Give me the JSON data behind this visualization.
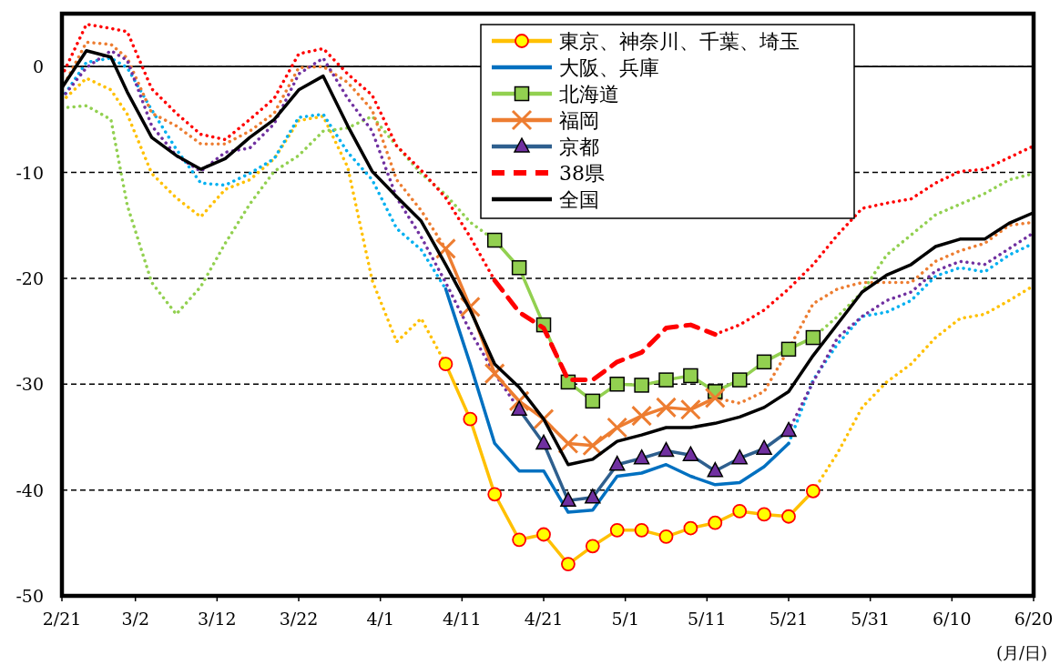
{
  "chart_data": {
    "type": "line",
    "xlabel": "(月/日)",
    "x": [
      "--02-21",
      "--02-24",
      "--02-27",
      "--03-01",
      "--03-04",
      "--03-07",
      "--03-10",
      "--03-13",
      "--03-16",
      "--03-19",
      "--03-22",
      "--03-25",
      "--03-28",
      "--03-31",
      "--04-03",
      "--04-06",
      "--04-09",
      "--04-12",
      "--04-15",
      "--04-18",
      "--04-21",
      "--04-24",
      "--04-27",
      "--04-30",
      "--05-03",
      "--05-06",
      "--05-09",
      "--05-12",
      "--05-15",
      "--05-18",
      "--05-21",
      "--05-24",
      "--05-27",
      "--05-30",
      "--06-02",
      "--06-05",
      "--06-08",
      "--06-11",
      "--06-14",
      "--06-17",
      "--06-20"
    ],
    "xlim": [
      "--02-21",
      "--06-20"
    ],
    "xticks": [
      {
        "value": "--02-21",
        "label": "2/21"
      },
      {
        "value": "--03-02",
        "label": "3/2"
      },
      {
        "value": "--03-12",
        "label": "3/12"
      },
      {
        "value": "--03-22",
        "label": "3/22"
      },
      {
        "value": "--04-01",
        "label": "4/1"
      },
      {
        "value": "--04-11",
        "label": "4/11"
      },
      {
        "value": "--04-21",
        "label": "4/21"
      },
      {
        "value": "--05-01",
        "label": "5/1"
      },
      {
        "value": "--05-11",
        "label": "5/11"
      },
      {
        "value": "--05-21",
        "label": "5/21"
      },
      {
        "value": "--05-31",
        "label": "5/31"
      },
      {
        "value": "--06-10",
        "label": "6/10"
      },
      {
        "value": "--06-20",
        "label": "6/20"
      }
    ],
    "ylim": [
      -50,
      5
    ],
    "yticks": [
      -50,
      -40,
      -30,
      -20,
      -10,
      0
    ],
    "grid": "y",
    "legend": "top right",
    "ref_lines": [
      {
        "axis": "y",
        "value": 0
      }
    ],
    "series": [
      {
        "color": "#ffc000",
        "line_style": "dotted",
        "marker": "none",
        "values": [
          -3.3,
          -1.1,
          -2.2,
          -4.5,
          -10.1,
          -12.4,
          -14.2,
          -11.6,
          -10.7,
          -8.7,
          -5.1,
          -4.7,
          -9.5,
          -20.2,
          -26,
          -23.8,
          -28.1,
          null,
          null,
          null,
          null,
          null,
          null,
          null,
          null,
          null,
          null,
          null,
          null,
          null,
          null,
          -40.1,
          -36.5,
          -32.2,
          -29.8,
          -28.1,
          -25.6,
          -23.8,
          -23.4,
          -22.1,
          -20.7
        ]
      },
      {
        "color": "#00b0f0",
        "line_style": "dotted",
        "marker": "none",
        "values": [
          -3,
          0.4,
          0.8,
          -0.1,
          -4.1,
          -7.8,
          -11,
          -11.2,
          -10.1,
          -8.7,
          -4.8,
          -4.5,
          -8.1,
          -10.7,
          -15.3,
          -17.3,
          -21,
          null,
          null,
          null,
          null,
          null,
          null,
          null,
          null,
          null,
          null,
          null,
          null,
          null,
          -35.6,
          -29.6,
          -26.2,
          -23.6,
          -23.2,
          -22.1,
          -19.8,
          -19,
          -19.4,
          -17.8,
          -16.7
        ]
      },
      {
        "color": "#92d050",
        "line_style": "dotted",
        "marker": "none",
        "values": [
          -3.9,
          -3.7,
          -5,
          -13.1,
          -20.4,
          -23.4,
          -20.8,
          -16.7,
          -13,
          -9.9,
          -8.4,
          -6.1,
          -5.8,
          -4.7,
          -7.5,
          -10.1,
          -12.1,
          -14.7,
          -16.4,
          null,
          null,
          null,
          null,
          null,
          null,
          null,
          null,
          null,
          null,
          null,
          null,
          -25.6,
          -23.6,
          -21.3,
          -17.8,
          -15.9,
          -14,
          -13,
          -12,
          -10.7,
          -10.1
        ]
      },
      {
        "color": "#ed7d31",
        "line_style": "dotted",
        "marker": "none",
        "values": [
          -2.1,
          2.3,
          2.1,
          0.8,
          -4.4,
          -5.6,
          -7.3,
          -7.3,
          -6.1,
          -4.4,
          -0.1,
          0,
          -1.5,
          -4.1,
          -10.7,
          -13.6,
          -17.2,
          null,
          null,
          null,
          null,
          null,
          null,
          null,
          null,
          null,
          null,
          -31.3,
          -31.8,
          -30.7,
          -26.7,
          -22.4,
          -21,
          -20.4,
          -20.4,
          -20.4,
          -18.4,
          -17.4,
          -16.7,
          -15,
          -14.7
        ]
      },
      {
        "color": "#7030a0",
        "line_style": "dotted",
        "marker": "none",
        "values": [
          -3,
          -0.1,
          1.5,
          0.6,
          -5.6,
          -8.4,
          -9.9,
          -8.1,
          -7.7,
          -5.4,
          -0.7,
          0.8,
          -3,
          -6.1,
          -12.4,
          -16.1,
          -20.4,
          -25,
          -29,
          -32.4,
          null,
          null,
          null,
          null,
          null,
          null,
          null,
          null,
          null,
          null,
          -34.4,
          -29.8,
          -25.6,
          -23.6,
          -22.1,
          -21.3,
          -19.3,
          -18.4,
          -18.7,
          -17.2,
          -15.7
        ]
      },
      {
        "color": "#ff0000",
        "line_style": "dotted",
        "marker": "none",
        "values": [
          -0.9,
          4,
          3.6,
          3.3,
          -2.1,
          -4.4,
          -6.4,
          -6.9,
          -5,
          -3,
          1.2,
          1.7,
          -0.7,
          -2.7,
          -7.5,
          -9.8,
          -12.4,
          -16.1,
          -20.2,
          null,
          null,
          null,
          null,
          null,
          null,
          null,
          null,
          -25.3,
          -24.4,
          -23,
          -21,
          -18.7,
          -15.9,
          -13.4,
          -12.9,
          -12.5,
          -11,
          -9.9,
          -9.7,
          -8.6,
          -7.5
        ]
      },
      {
        "name": "東京、神奈川、千葉、埼玉",
        "color": "#ffc000",
        "line_style": "solid",
        "marker": "circle",
        "values": [
          null,
          null,
          null,
          null,
          null,
          null,
          null,
          null,
          null,
          null,
          null,
          null,
          null,
          null,
          null,
          null,
          -28.1,
          -33.3,
          -40.4,
          -44.7,
          -44.2,
          -47,
          -45.3,
          -43.8,
          -43.8,
          -44.4,
          -43.6,
          -43.1,
          -42,
          -42.3,
          -42.5,
          -40.1,
          null,
          null,
          null,
          null,
          null,
          null,
          null,
          null,
          null
        ]
      },
      {
        "name": "大阪、兵庫",
        "color": "#0070c0",
        "line_style": "solid",
        "marker": "none",
        "values": [
          null,
          null,
          null,
          null,
          null,
          null,
          null,
          null,
          null,
          null,
          null,
          null,
          null,
          null,
          null,
          null,
          -21,
          -28.1,
          -35.6,
          -38.2,
          -38.2,
          -42.1,
          -41.9,
          -38.7,
          -38.4,
          -37.6,
          -38.7,
          -39.5,
          -39.3,
          -37.8,
          -35.6,
          null,
          null,
          null,
          null,
          null,
          null,
          null,
          null,
          null,
          null
        ]
      },
      {
        "name": "北海道",
        "color": "#92d050",
        "line_style": "solid",
        "marker": "square",
        "values": [
          null,
          null,
          null,
          null,
          null,
          null,
          null,
          null,
          null,
          null,
          null,
          null,
          null,
          null,
          null,
          null,
          null,
          null,
          -16.4,
          -19,
          -24.4,
          -29.8,
          -31.6,
          -30,
          -30.1,
          -29.6,
          -29.2,
          -30.7,
          -29.6,
          -27.9,
          -26.7,
          -25.6,
          null,
          null,
          null,
          null,
          null,
          null,
          null,
          null,
          null
        ]
      },
      {
        "name": "福岡",
        "color": "#ed7d31",
        "line_style": "solid",
        "marker": "cross",
        "values": [
          null,
          null,
          null,
          null,
          null,
          null,
          null,
          null,
          null,
          null,
          null,
          null,
          null,
          null,
          null,
          null,
          -17.2,
          -22.7,
          -29,
          -31.6,
          -33.3,
          -35.6,
          -35.8,
          -34.1,
          -33,
          -32.2,
          -32.4,
          -31.3,
          null,
          null,
          null,
          null,
          null,
          null,
          null,
          null,
          null,
          null,
          null,
          null,
          null
        ]
      },
      {
        "name": "京都",
        "color": "#2e5f8e",
        "line_style": "solid",
        "marker": "triangle",
        "values": [
          null,
          null,
          null,
          null,
          null,
          null,
          null,
          null,
          null,
          null,
          null,
          null,
          null,
          null,
          null,
          null,
          null,
          null,
          null,
          -32.4,
          -35.6,
          -41,
          -40.7,
          -37.6,
          -37,
          -36.3,
          -36.7,
          -38.2,
          -37,
          -36.1,
          -34.4,
          null,
          null,
          null,
          null,
          null,
          null,
          null,
          null,
          null,
          null
        ]
      },
      {
        "name": "38県",
        "color": "#ff0000",
        "line_style": "dashed",
        "marker": "none",
        "values": [
          null,
          null,
          null,
          null,
          null,
          null,
          null,
          null,
          null,
          null,
          null,
          null,
          null,
          null,
          null,
          null,
          null,
          null,
          -20.2,
          -23.2,
          -24.7,
          -29.6,
          -29.6,
          -27.9,
          -27,
          -24.7,
          -24.4,
          -25.3,
          null,
          null,
          null,
          null,
          null,
          null,
          null,
          null,
          null,
          null,
          null,
          null,
          null
        ]
      },
      {
        "name": "全国",
        "color": "#000000",
        "line_style": "solid",
        "marker": "none",
        "values": [
          -2,
          1.5,
          0.9,
          -2.4,
          -6.7,
          -8.4,
          -9.7,
          -8.7,
          -6.7,
          -5,
          -2.2,
          -0.9,
          -5.6,
          -9.9,
          -12.3,
          -14.6,
          -18.7,
          -23,
          -28.1,
          -30.3,
          -33.3,
          -37.6,
          -37.1,
          -35.4,
          -34.8,
          -34.1,
          -34.1,
          -33.7,
          -33.1,
          -32.2,
          -30.7,
          -27.3,
          -24.3,
          -21.3,
          -19.7,
          -18.7,
          -17,
          -16.3,
          -16.3,
          -14.8,
          -13.8
        ]
      }
    ]
  }
}
